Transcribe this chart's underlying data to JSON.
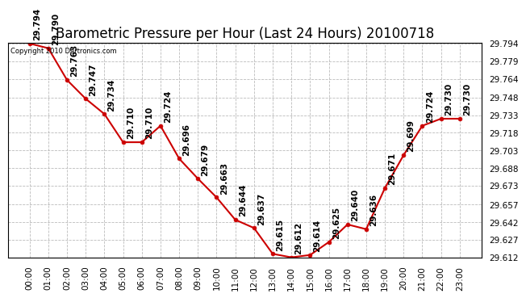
{
  "title": "Barometric Pressure per Hour (Last 24 Hours) 20100718",
  "copyright": "Copyright 2010 Dartronics.com",
  "hours": [
    "00:00",
    "01:00",
    "02:00",
    "03:00",
    "04:00",
    "05:00",
    "06:00",
    "07:00",
    "08:00",
    "09:00",
    "10:00",
    "11:00",
    "12:00",
    "13:00",
    "14:00",
    "15:00",
    "16:00",
    "17:00",
    "18:00",
    "19:00",
    "20:00",
    "21:00",
    "22:00",
    "23:00"
  ],
  "values": [
    29.794,
    29.79,
    29.763,
    29.747,
    29.734,
    29.71,
    29.71,
    29.724,
    29.696,
    29.679,
    29.663,
    29.644,
    29.637,
    29.615,
    29.612,
    29.614,
    29.625,
    29.64,
    29.636,
    29.671,
    29.699,
    29.724,
    29.73,
    29.73
  ],
  "ylim_min": 29.612,
  "ylim_max": 29.794,
  "yticks": [
    29.612,
    29.627,
    29.642,
    29.657,
    29.673,
    29.688,
    29.703,
    29.718,
    29.733,
    29.748,
    29.764,
    29.779,
    29.794
  ],
  "line_color": "#cc0000",
  "marker_color": "#cc0000",
  "bg_color": "#ffffff",
  "grid_color": "#bbbbbb",
  "title_fontsize": 12,
  "label_fontsize": 7.5,
  "annotation_fontsize": 7.5
}
